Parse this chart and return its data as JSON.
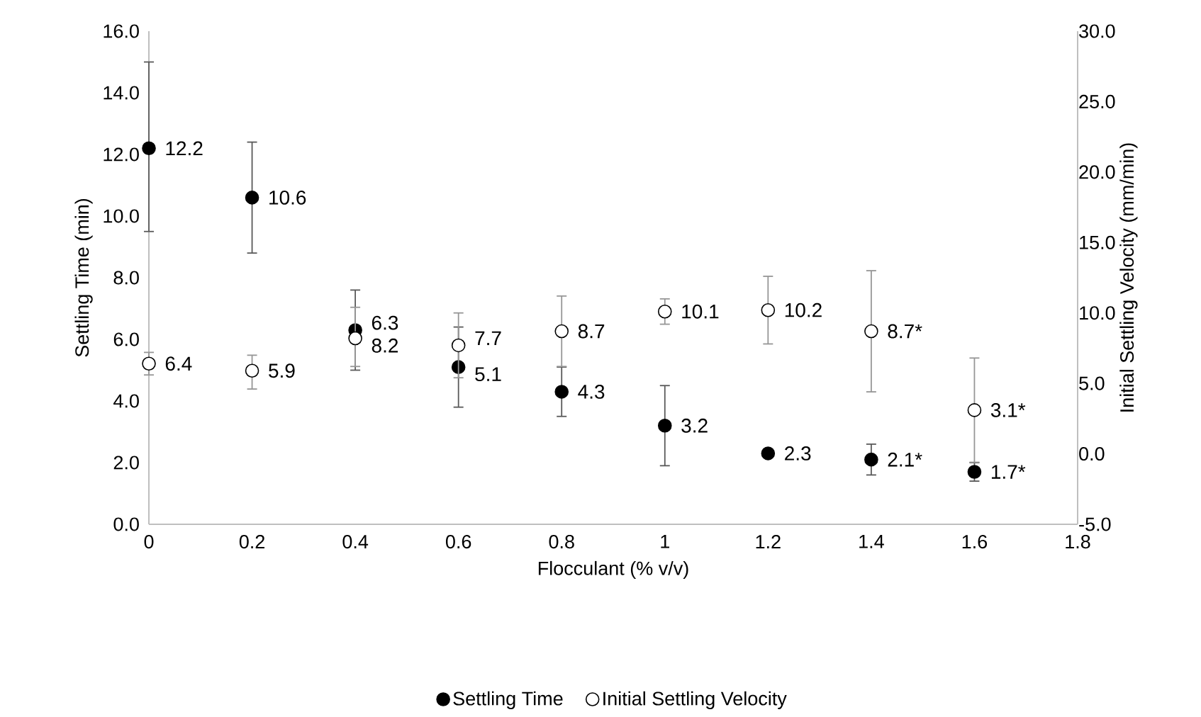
{
  "chart_data": {
    "type": "scatter",
    "xlabel": "Flocculant (% v/v)",
    "ylabel": "Settling Time (min)",
    "y2label": "Initial Settling Velocity (mm/min)",
    "x": [
      0,
      0.2,
      0.4,
      0.6,
      0.8,
      1,
      1.2,
      1.4,
      1.6
    ],
    "xlim": [
      0,
      1.8
    ],
    "xticks": [
      0,
      0.2,
      0.4,
      0.6,
      0.8,
      1,
      1.2,
      1.4,
      1.6,
      1.8
    ],
    "ylim": [
      0,
      16
    ],
    "yticks": [
      {
        "value": 0,
        "label": "0.0"
      },
      {
        "value": 2,
        "label": "2.0"
      },
      {
        "value": 4,
        "label": "4.0"
      },
      {
        "value": 6,
        "label": "6.0"
      },
      {
        "value": 8,
        "label": "8.0"
      },
      {
        "value": 10,
        "label": "10.0"
      },
      {
        "value": 12,
        "label": "12.0"
      },
      {
        "value": 14,
        "label": "14.0"
      },
      {
        "value": 16,
        "label": "16.0"
      }
    ],
    "y2lim": [
      -5,
      30
    ],
    "y2ticks": [
      {
        "value": -5,
        "label": "-5.0"
      },
      {
        "value": 0,
        "label": "0.0"
      },
      {
        "value": 5,
        "label": "5.0"
      },
      {
        "value": 10,
        "label": "10.0"
      },
      {
        "value": 15,
        "label": "15.0"
      },
      {
        "value": 20,
        "label": "20.0"
      },
      {
        "value": 25,
        "label": "25.0"
      },
      {
        "value": 30,
        "label": "30.0"
      }
    ],
    "marker": "circle",
    "legend": "bottom",
    "series": [
      {
        "name": "Settling Time",
        "color": "#000000",
        "values": [
          12.2,
          10.6,
          6.3,
          5.1,
          4.3,
          3.2,
          2.3,
          2.1,
          1.7
        ],
        "errors": [
          [
            9.5,
            15.0
          ],
          [
            8.8,
            12.4
          ],
          [
            5.0,
            7.6
          ],
          [
            3.8,
            6.4
          ],
          [
            3.5,
            5.1
          ],
          [
            1.9,
            4.5
          ],
          null,
          [
            1.6,
            2.6
          ],
          [
            1.4,
            2.0
          ]
        ],
        "value_labels": [
          "12.2",
          "10.6",
          "6.3",
          "5.1",
          "4.3",
          "3.2",
          "2.3",
          "2.1*",
          "1.7*"
        ]
      },
      {
        "name": "Initial Settling Velocity",
        "color": "#ffffff",
        "axis": "y2",
        "values": [
          6.4,
          5.9,
          8.2,
          7.7,
          8.7,
          10.1,
          10.2,
          8.7,
          3.1
        ],
        "errors": [
          [
            5.6,
            7.2
          ],
          [
            4.6,
            7.0
          ],
          [
            6.2,
            10.4
          ],
          [
            5.4,
            10.0
          ],
          [
            6.2,
            11.2
          ],
          [
            9.2,
            11.0
          ],
          [
            7.8,
            12.6
          ],
          [
            4.4,
            13.0
          ],
          [
            -0.6,
            6.8
          ]
        ],
        "value_labels": [
          "6.4",
          "5.9",
          "8.2",
          "7.7",
          "8.7",
          "10.1",
          "10.2",
          "8.7*",
          "3.1*"
        ]
      }
    ]
  }
}
